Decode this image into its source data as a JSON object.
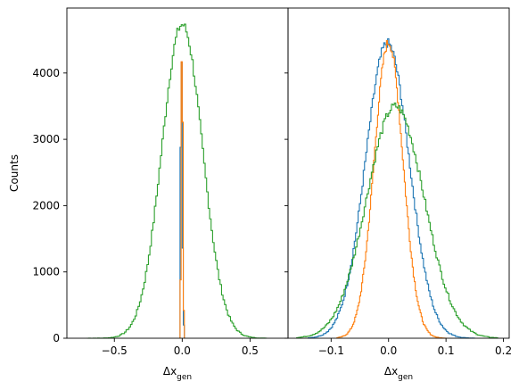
{
  "chart_data": [
    {
      "type": "step-histogram",
      "xlabel": "Δx",
      "xlabel_subscript": "gen",
      "ylabel": "Counts",
      "xlim": [
        -0.85,
        0.78
      ],
      "ylim": [
        0,
        4980
      ],
      "xticks": [
        -0.5,
        0.0,
        0.5
      ],
      "xtick_labels": [
        "−0.5",
        "0.0",
        "0.5"
      ],
      "yticks": [
        0,
        1000,
        2000,
        3000,
        4000
      ],
      "ytick_labels": [
        "0",
        "1000",
        "2000",
        "3000",
        "4000"
      ],
      "grid": false,
      "series": [
        {
          "color": "#2ca02c",
          "kind": "gaussian",
          "mu": 0.0,
          "sigma": 0.15,
          "peak": 4730,
          "range": [
            -0.7,
            0.62
          ],
          "bins": 120
        },
        {
          "color": "#1f77b4",
          "kind": "spikes",
          "x": [
            -0.012,
            -0.004,
            0.004,
            0.012
          ],
          "counts": [
            2880,
            4160,
            1360,
            200
          ],
          "halfwidth": 0.004
        },
        {
          "color": "#ff7f0e",
          "kind": "spikes",
          "x": [
            -0.012,
            -0.004,
            0.004,
            0.012
          ],
          "counts": [
            880,
            4170,
            3260,
            420
          ],
          "halfwidth": 0.004
        }
      ]
    },
    {
      "type": "step-histogram",
      "xlabel": "Δx",
      "xlabel_subscript": "gen",
      "ylabel": "",
      "xlim": [
        -0.175,
        0.21
      ],
      "ylim": [
        0,
        4980
      ],
      "xticks": [
        -0.1,
        0.0,
        0.1,
        0.2
      ],
      "xtick_labels": [
        "−0.1",
        "0.0",
        "0.1",
        "0.2"
      ],
      "yticks": [
        0,
        1000,
        2000,
        3000,
        4000
      ],
      "ytick_labels": [],
      "grid": false,
      "series": [
        {
          "color": "#1f77b4",
          "kind": "gaussian",
          "mu": -0.002,
          "sigma": 0.038,
          "peak": 4450,
          "range": [
            -0.14,
            0.15
          ],
          "bins": 130
        },
        {
          "color": "#ff7f0e",
          "kind": "gaussian",
          "mu": 0.0,
          "sigma": 0.025,
          "peak": 4460,
          "range": [
            -0.09,
            0.1
          ],
          "bins": 110
        },
        {
          "color": "#2ca02c",
          "kind": "gaussian",
          "mu": 0.012,
          "sigma": 0.05,
          "peak": 3500,
          "range": [
            -0.16,
            0.19
          ],
          "bins": 140
        }
      ]
    }
  ]
}
